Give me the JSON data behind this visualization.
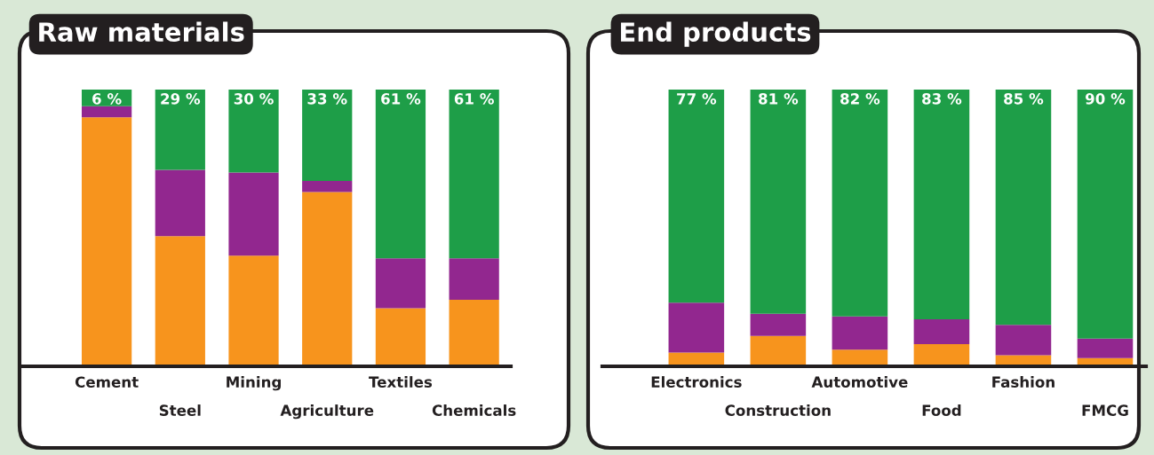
{
  "chart_data": [
    {
      "type": "bar",
      "title": "Raw materials",
      "stacked": true,
      "legend": false,
      "grid": false,
      "tick_labels": "x",
      "ylim": [
        0,
        100
      ],
      "categories": [
        "Cement",
        "Steel",
        "Mining",
        "Agriculture",
        "Textiles",
        "Chemicals"
      ],
      "series": [
        {
          "color": "#f7941d",
          "values": [
            90,
            47,
            40,
            63,
            21,
            24
          ]
        },
        {
          "color": "#92278f",
          "values": [
            4,
            24,
            30,
            4,
            18,
            15
          ]
        },
        {
          "color": "#1e9e48",
          "values": [
            6,
            29,
            30,
            33,
            61,
            61
          ],
          "value_labels": [
            "6 %",
            "29 %",
            "30 %",
            "33 %",
            "61 %",
            "61 %"
          ]
        }
      ]
    },
    {
      "type": "bar",
      "title": "End products",
      "stacked": true,
      "legend": false,
      "grid": false,
      "tick_labels": "x",
      "ylim": [
        0,
        100
      ],
      "categories": [
        "Electronics",
        "Construction",
        "Automotive",
        "Food",
        "Fashion",
        "FMCG"
      ],
      "series": [
        {
          "color": "#f7941d",
          "values": [
            5,
            11,
            6,
            8,
            4,
            3
          ]
        },
        {
          "color": "#92278f",
          "values": [
            18,
            8,
            12,
            9,
            11,
            7
          ]
        },
        {
          "color": "#1e9e48",
          "values": [
            77,
            81,
            82,
            83,
            85,
            90
          ],
          "value_labels": [
            "77 %",
            "81 %",
            "82 %",
            "83 %",
            "85 %",
            "90 %"
          ]
        }
      ]
    }
  ]
}
